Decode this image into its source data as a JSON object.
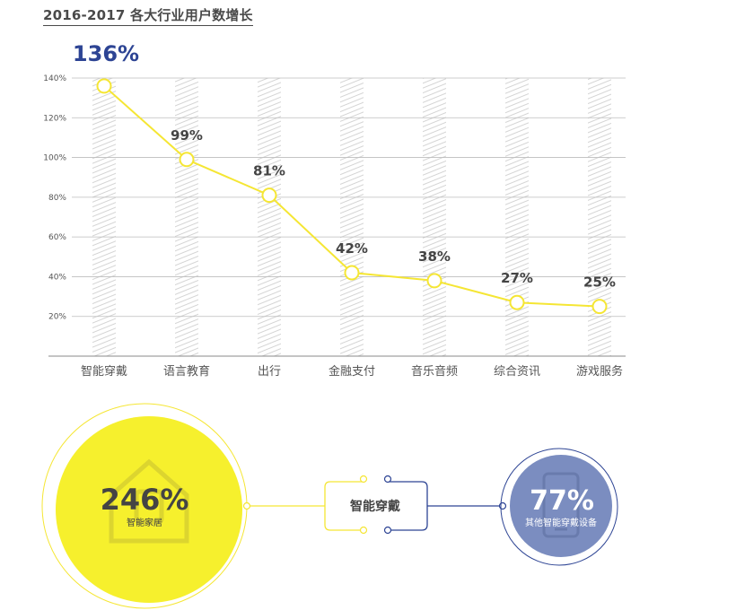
{
  "title": "2016-2017 各大行业用户数增长",
  "chart_data": {
    "type": "line",
    "categories": [
      "智能穿戴",
      "语言教育",
      "出行",
      "金融支付",
      "音乐音频",
      "综合资讯",
      "游戏服务"
    ],
    "values": [
      136,
      99,
      81,
      42,
      38,
      27,
      25
    ],
    "value_labels": [
      "136%",
      "99%",
      "81%",
      "42%",
      "38%",
      "27%",
      "25%"
    ],
    "ytick_labels": [
      "20%",
      "40%",
      "60%",
      "80%",
      "100%",
      "120%",
      "140%"
    ],
    "yticks": [
      20,
      40,
      60,
      80,
      100,
      120,
      140
    ],
    "ylim": [
      0,
      140
    ],
    "grid": true,
    "colors": {
      "line": "#f5e634",
      "highlight_label": "#2d4494",
      "label": "#444444"
    }
  },
  "bottom": {
    "left_circle": {
      "value": "246%",
      "label": "智能家居",
      "fill": "#f6f02d"
    },
    "center_box": {
      "label": "智能穿戴"
    },
    "right_circle": {
      "value": "77%",
      "label": "其他智能穿戴设备",
      "fill": "#7b8dc0"
    }
  }
}
